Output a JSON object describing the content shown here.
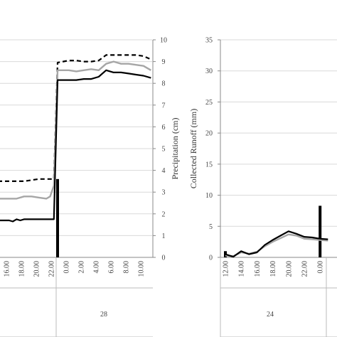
{
  "chart_data": [
    {
      "type": "line",
      "panel": "left",
      "x_ticks": [
        "16.00",
        "18.00",
        "20.00",
        "22.00",
        "0.00",
        "2.00",
        "4.00",
        "6.00",
        "8.00",
        "10.00"
      ],
      "group_label": "28",
      "right_axis": {
        "label": "Precipitation (cm)",
        "ylim": [
          0,
          10
        ],
        "ticks": [
          "0",
          "1",
          "2",
          "3",
          "4",
          "5",
          "6",
          "7",
          "8",
          "9",
          "10"
        ]
      },
      "x_range": [
        14.5,
        35.0
      ],
      "series": [
        {
          "style": "dashed",
          "color": "#000000",
          "x": [
            14.5,
            16.0,
            18.0,
            20.0,
            21.0,
            22.0,
            22.5,
            24.0,
            25.0,
            26.0,
            27.0,
            28.0,
            29.0,
            30.0,
            31.0,
            32.0,
            33.0,
            34.0,
            35.0
          ],
          "y": [
            3.5,
            3.5,
            3.5,
            3.6,
            3.6,
            3.6,
            8.95,
            9.05,
            9.05,
            9.0,
            9.0,
            9.05,
            9.3,
            9.3,
            9.3,
            9.3,
            9.3,
            9.25,
            9.1
          ]
        },
        {
          "style": "solid",
          "color": "#a6a6a6",
          "x": [
            14.5,
            16.0,
            17.0,
            18.0,
            19.0,
            20.0,
            21.0,
            21.5,
            22.0,
            22.5,
            24.0,
            25.0,
            26.0,
            27.0,
            28.0,
            29.0,
            30.0,
            31.0,
            32.0,
            33.0,
            34.0,
            35.0
          ],
          "y": [
            2.7,
            2.7,
            2.7,
            2.8,
            2.8,
            2.75,
            2.7,
            2.8,
            3.3,
            8.6,
            8.6,
            8.55,
            8.6,
            8.65,
            8.6,
            8.9,
            9.0,
            8.9,
            8.9,
            8.85,
            8.8,
            8.6
          ]
        },
        {
          "style": "solid",
          "color": "#000000",
          "x": [
            14.5,
            16.0,
            16.5,
            17.0,
            17.5,
            18.0,
            19.0,
            20.0,
            21.0,
            22.0,
            22.5,
            24.0,
            25.0,
            26.0,
            27.0,
            28.0,
            29.0,
            30.0,
            31.0,
            32.0,
            33.0,
            34.0,
            35.0
          ],
          "y": [
            1.7,
            1.7,
            1.65,
            1.75,
            1.7,
            1.75,
            1.75,
            1.75,
            1.75,
            1.75,
            8.15,
            8.15,
            8.15,
            8.2,
            8.2,
            8.3,
            8.6,
            8.5,
            8.5,
            8.45,
            8.4,
            8.35,
            8.25
          ]
        }
      ],
      "bars": [
        {
          "x": 22.5,
          "value": 3.6
        }
      ]
    },
    {
      "type": "line",
      "panel": "right",
      "x_ticks": [
        "12.00",
        "14.00",
        "16.00",
        "18.00",
        "20.00",
        "22.00",
        "0.00"
      ],
      "group_label": "24",
      "left_axis": {
        "label": "Collected Runoff (mm)",
        "ylim": [
          0,
          35
        ],
        "ticks": [
          "0",
          "5",
          "10",
          "15",
          "20",
          "25",
          "30",
          "35"
        ]
      },
      "x_range": [
        12.0,
        25.0
      ],
      "series": [
        {
          "style": "solid",
          "color": "#000000",
          "x": [
            12.0,
            12.5,
            13.0,
            14.0,
            15.0,
            16.0,
            17.0,
            18.0,
            19.0,
            20.0,
            21.0,
            22.0,
            23.0,
            24.0,
            25.0
          ],
          "y": [
            0.5,
            0.3,
            0.1,
            1.0,
            0.5,
            0.8,
            2.0,
            2.8,
            3.5,
            4.2,
            3.8,
            3.3,
            3.2,
            3.0,
            2.9
          ]
        },
        {
          "style": "solid",
          "color": "#a6a6a6",
          "x": [
            12.0,
            13.0,
            14.0,
            15.0,
            16.0,
            17.0,
            18.0,
            19.0,
            20.0,
            21.0,
            22.0,
            23.0,
            24.0,
            25.0
          ],
          "y": [
            0.3,
            0.2,
            0.8,
            0.6,
            0.9,
            1.8,
            2.5,
            3.1,
            3.7,
            3.5,
            3.0,
            2.9,
            2.8,
            2.7
          ]
        }
      ],
      "bars": [
        {
          "x": 12.0,
          "value": 1.0
        },
        {
          "x": 24.0,
          "value": 8.3
        }
      ]
    }
  ]
}
